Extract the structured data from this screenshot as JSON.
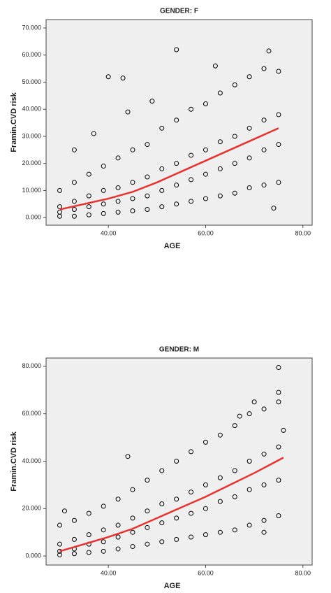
{
  "chart_data": [
    {
      "type": "scatter",
      "title": "GENDER: F",
      "x_label": "AGE",
      "y_label": "Framin.CVD risk",
      "marker_color": "#000000",
      "x": [
        30,
        30,
        30,
        30,
        33,
        33,
        33,
        33,
        36,
        36,
        36,
        36,
        39,
        39,
        39,
        39,
        42,
        42,
        42,
        42,
        45,
        45,
        45,
        45,
        48,
        48,
        48,
        48,
        51,
        51,
        51,
        51,
        54,
        54,
        54,
        54,
        57,
        57,
        57,
        57,
        60,
        60,
        60,
        60,
        63,
        63,
        63,
        63,
        66,
        66,
        66,
        66,
        69,
        69,
        69,
        69,
        72,
        72,
        72,
        72,
        75,
        75,
        75,
        75,
        40,
        43,
        54,
        73,
        74,
        37,
        33,
        62,
        44,
        49
      ],
      "values": [
        0.5,
        2,
        4,
        10,
        0.5,
        3,
        6,
        13,
        1,
        4,
        8,
        16,
        1.5,
        5,
        10,
        19,
        2,
        6,
        11,
        22,
        2.5,
        7,
        13,
        25,
        3,
        8,
        15,
        27,
        4,
        10,
        18,
        33,
        5,
        12,
        20,
        36,
        6,
        14,
        23,
        40,
        7,
        16,
        25,
        42,
        8,
        18,
        28,
        46,
        9,
        20,
        30,
        49,
        11,
        22,
        33,
        52,
        12,
        25,
        36,
        55,
        13,
        27,
        38,
        54,
        52,
        51.5,
        62,
        61.5,
        3.5,
        31,
        25,
        56,
        39,
        43
      ],
      "fit": {
        "color": "#e8322f",
        "x": [
          30,
          35,
          40,
          45,
          50,
          55,
          60,
          65,
          70,
          75
        ],
        "values": [
          3,
          5,
          7,
          9.5,
          13,
          17,
          21,
          25,
          29,
          33
        ]
      },
      "xlim": [
        27.2,
        81.9
      ],
      "ylim": [
        -2.8,
        73.1
      ],
      "xticks": [
        {
          "value": 40,
          "label": "40.00"
        },
        {
          "value": 60,
          "label": "60.00"
        },
        {
          "value": 80,
          "label": "80.00"
        }
      ],
      "yticks": [
        {
          "value": 0,
          "label": "0.000"
        },
        {
          "value": 10,
          "label": "10.000"
        },
        {
          "value": 20,
          "label": "20.000"
        },
        {
          "value": 30,
          "label": "30.000"
        },
        {
          "value": 40,
          "label": "40.000"
        },
        {
          "value": 50,
          "label": "50.000"
        },
        {
          "value": 60,
          "label": "60.000"
        },
        {
          "value": 70,
          "label": "70.000"
        }
      ]
    },
    {
      "type": "scatter",
      "title": "GENDER: M",
      "x_label": "AGE",
      "y_label": "Framin.CVD risk",
      "marker_color": "#000000",
      "x": [
        30,
        30,
        30,
        30,
        33,
        33,
        33,
        33,
        36,
        36,
        36,
        36,
        39,
        39,
        39,
        39,
        42,
        42,
        42,
        42,
        45,
        45,
        45,
        45,
        48,
        48,
        48,
        48,
        51,
        51,
        51,
        51,
        54,
        54,
        54,
        54,
        57,
        57,
        57,
        57,
        60,
        60,
        60,
        60,
        63,
        63,
        63,
        63,
        66,
        66,
        66,
        66,
        69,
        69,
        69,
        69,
        72,
        72,
        72,
        72,
        75,
        75,
        75,
        75,
        75,
        75,
        44,
        31,
        72,
        76,
        67,
        70
      ],
      "values": [
        0.5,
        2,
        5,
        13,
        1,
        3,
        7,
        15,
        1.5,
        5,
        9,
        18,
        2,
        6,
        11,
        21,
        3,
        8,
        13,
        24,
        4,
        10,
        16,
        28,
        5,
        12,
        19,
        32,
        6,
        14,
        22,
        36,
        7,
        16,
        24,
        40,
        8,
        18,
        27,
        44,
        9,
        20,
        30,
        48,
        10,
        23,
        33,
        51,
        11,
        25,
        36,
        55,
        13,
        28,
        40,
        60,
        15,
        30,
        43,
        62,
        17,
        32,
        46,
        65,
        79.5,
        69,
        42,
        19,
        10,
        53,
        59,
        65
      ],
      "fit": {
        "color": "#e8322f",
        "x": [
          30,
          35,
          40,
          45,
          50,
          55,
          60,
          65,
          70,
          76
        ],
        "values": [
          2,
          5,
          8,
          11.5,
          16,
          20.5,
          25,
          30,
          35,
          41.5
        ]
      },
      "xlim": [
        27.2,
        81.9
      ],
      "ylim": [
        -3.8,
        83.5
      ],
      "xticks": [
        {
          "value": 40,
          "label": "40.00"
        },
        {
          "value": 60,
          "label": "60.00"
        },
        {
          "value": 80,
          "label": "80.00"
        }
      ],
      "yticks": [
        {
          "value": 0,
          "label": "0.000"
        },
        {
          "value": 20,
          "label": "20.000"
        },
        {
          "value": 40,
          "label": "40.000"
        },
        {
          "value": 60,
          "label": "60.000"
        },
        {
          "value": 80,
          "label": "80.000"
        }
      ]
    }
  ]
}
